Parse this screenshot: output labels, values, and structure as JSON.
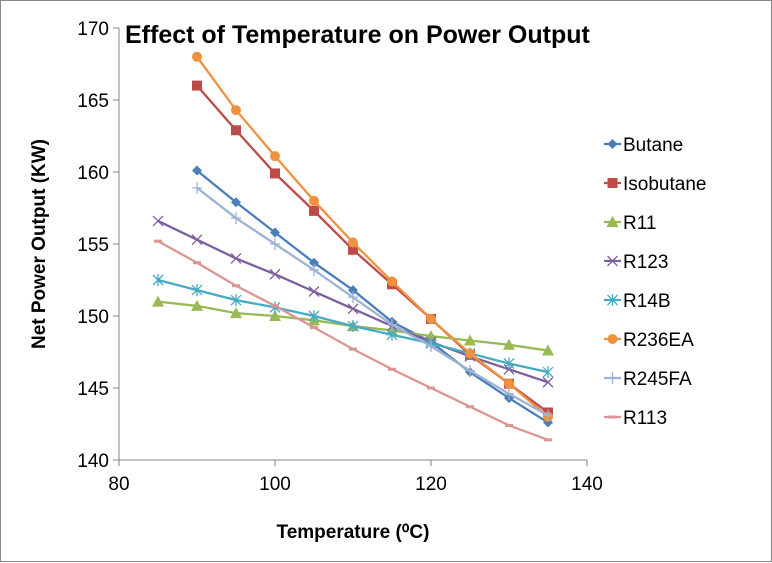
{
  "chart_data": {
    "type": "line",
    "title": "Effect of Temperature on Power Output",
    "xlabel": "Temperature (⁰C)",
    "ylabel": "Net Power Output (KW)",
    "xlim": [
      80,
      140
    ],
    "ylim": [
      140,
      170
    ],
    "xticks": [
      "80",
      "100",
      "120",
      "140"
    ],
    "yticks": [
      "140",
      "145",
      "150",
      "155",
      "160",
      "165",
      "170"
    ],
    "grid": false,
    "legend": "right",
    "series": [
      {
        "name": "Butane",
        "color": "#4a7ebb",
        "marker": "diamond",
        "x": [
          90,
          95,
          100,
          105,
          110,
          115,
          120,
          125,
          130,
          135
        ],
        "y": [
          160.1,
          157.9,
          155.8,
          153.7,
          151.8,
          149.6,
          148.2,
          146.1,
          144.3,
          142.6
        ]
      },
      {
        "name": "Isobutane",
        "color": "#be4b48",
        "marker": "square",
        "x": [
          90,
          95,
          100,
          105,
          110,
          115,
          120,
          125,
          130,
          135
        ],
        "y": [
          166.0,
          162.9,
          159.9,
          157.3,
          154.6,
          152.2,
          149.8,
          147.3,
          145.3,
          143.3
        ]
      },
      {
        "name": "R11",
        "color": "#98b954",
        "marker": "triangle",
        "x": [
          85,
          90,
          95,
          100,
          105,
          110,
          115,
          120,
          125,
          130,
          135
        ],
        "y": [
          151.0,
          150.7,
          150.2,
          150.0,
          149.7,
          149.3,
          149.0,
          148.6,
          148.3,
          148.0,
          147.6
        ]
      },
      {
        "name": "R123",
        "color": "#7d5fa0",
        "marker": "x",
        "x": [
          85,
          90,
          95,
          100,
          105,
          110,
          115,
          120,
          125,
          130,
          135
        ],
        "y": [
          156.6,
          155.3,
          154.0,
          152.9,
          151.7,
          150.5,
          149.3,
          148.2,
          147.2,
          146.3,
          145.4
        ]
      },
      {
        "name": "R14B",
        "color": "#46aac5",
        "marker": "asterisk",
        "x": [
          85,
          90,
          95,
          100,
          105,
          110,
          115,
          120,
          125,
          130,
          135
        ],
        "y": [
          152.5,
          151.8,
          151.1,
          150.6,
          150.0,
          149.3,
          148.7,
          148.1,
          147.4,
          146.7,
          146.1
        ]
      },
      {
        "name": "R236EA",
        "color": "#f0913f",
        "marker": "circle",
        "x": [
          90,
          95,
          100,
          105,
          110,
          115,
          120,
          125,
          130,
          135
        ],
        "y": [
          168.0,
          164.3,
          161.1,
          158.0,
          155.1,
          152.4,
          149.8,
          147.4,
          145.3,
          143.0
        ]
      },
      {
        "name": "R245FA",
        "color": "#9db3d3",
        "marker": "plus",
        "x": [
          90,
          95,
          100,
          105,
          110,
          115,
          120,
          125,
          130,
          135
        ],
        "y": [
          158.9,
          156.8,
          155.0,
          153.2,
          151.3,
          149.4,
          147.9,
          146.2,
          144.6,
          143.1
        ]
      },
      {
        "name": "R113",
        "color": "#da9694",
        "marker": "dash",
        "x": [
          85,
          90,
          95,
          100,
          105,
          110,
          115,
          120,
          125,
          130,
          135
        ],
        "y": [
          155.2,
          153.7,
          152.1,
          150.7,
          149.2,
          147.7,
          146.3,
          145.0,
          143.7,
          142.4,
          141.4
        ]
      }
    ]
  }
}
